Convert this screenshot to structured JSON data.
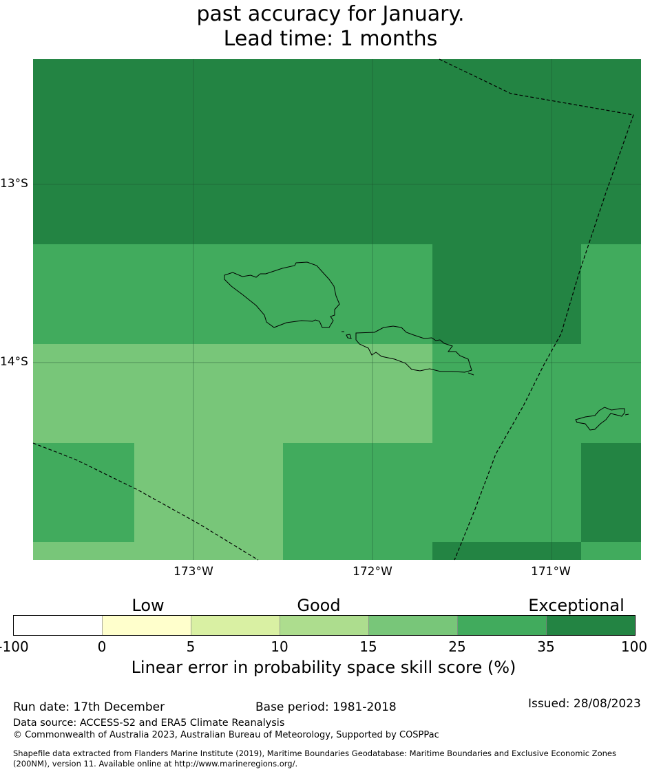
{
  "title": {
    "line1": "past accuracy for January.",
    "line2": "Lead time: 1 months"
  },
  "map": {
    "lat_labels": [
      "13°S",
      "14°S"
    ],
    "lon_labels": [
      "173°W",
      "172°W",
      "171°W"
    ],
    "colors": {
      "exceptional": "#238443",
      "very_good": "#41ab5d",
      "good": "#78c679",
      "coast": "#000000",
      "grid": "#1a4d2e"
    }
  },
  "colorbar": {
    "categories": [
      "Low",
      "Good",
      "Exceptional"
    ],
    "ticks": [
      "-100",
      "0",
      "5",
      "10",
      "15",
      "25",
      "35",
      "100"
    ],
    "colors": [
      "#ffffff",
      "#ffffcc",
      "#d9f0a3",
      "#addd8e",
      "#78c679",
      "#41ab5d",
      "#238443"
    ],
    "label": "Linear error in probability space skill score (%)"
  },
  "footer": {
    "run_date": "Run date: 17th December",
    "base_period": "Base period: 1981-2018",
    "issued": "Issued: 28/08/2023",
    "data_source": "Data source: ACCESS-S2 and ERA5 Climate Reanalysis",
    "copyright": "© Commonwealth of Australia 2023, Australian Bureau of Meteorology, Supported by COSPPac",
    "shapefile_line1": "Shapefile data extracted from Flanders Marine Institute (2019), Maritime Boundaries Geodatabase: Maritime Boundaries and Exclusive Economic Zones",
    "shapefile_line2": "(200NM), version 11. Available online at http://www.marineregions.org/."
  }
}
